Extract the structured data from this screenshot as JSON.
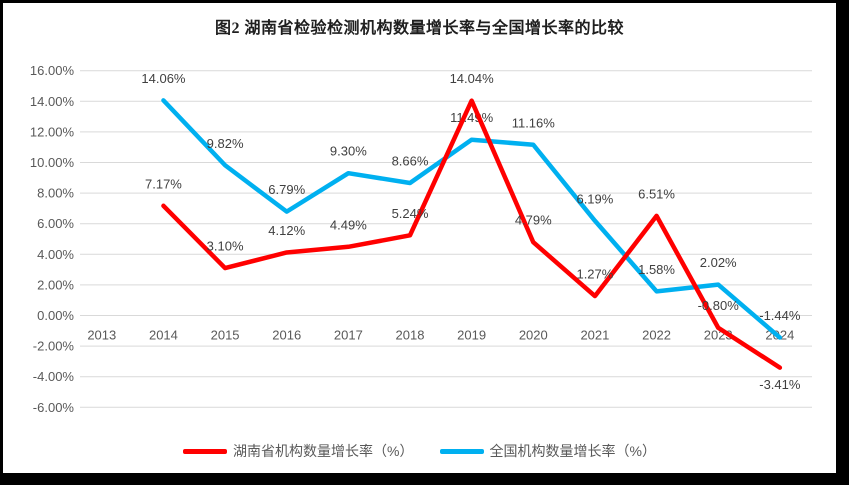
{
  "title": "图2 湖南省检验检测机构数量增长率与全国增长率的比较",
  "colors": {
    "frame": "#000000",
    "background": "#FFFFFF",
    "gridline": "#D9D9D9",
    "axis_text": "#595959",
    "data_label_text": "#404040",
    "title_text": "#1F1F1F",
    "hunan_series": "#FF0000",
    "national_series": "#00B0F0"
  },
  "chart_data": {
    "type": "line",
    "title": "图2 湖南省检验检测机构数量增长率与全国增长率的比较",
    "categories": [
      "2013",
      "2014",
      "2015",
      "2016",
      "2017",
      "2018",
      "2019",
      "2020",
      "2021",
      "2022",
      "2023",
      "2024"
    ],
    "series": [
      {
        "key": "hunan",
        "name": "湖南省机构数量增长率（%）",
        "color": "#FF0000",
        "values": [
          null,
          7.17,
          3.1,
          4.12,
          4.49,
          5.24,
          14.04,
          4.79,
          1.27,
          6.51,
          -0.8,
          -3.41
        ],
        "labels": [
          null,
          "7.17%",
          "3.10%",
          "4.12%",
          "4.49%",
          "5.24%",
          "14.04%",
          "4.79%",
          "1.27%",
          "6.51%",
          "-0.80%",
          "-3.41%"
        ],
        "label_positions": [
          null,
          "above",
          "above",
          "above",
          "above",
          "above",
          "above",
          "above",
          "above",
          "above",
          "above",
          "below"
        ]
      },
      {
        "key": "national",
        "name": "全国机构数量增长率（%）",
        "color": "#00B0F0",
        "values": [
          null,
          14.06,
          9.82,
          6.79,
          9.3,
          8.66,
          11.49,
          11.16,
          6.19,
          1.58,
          2.02,
          -1.44
        ],
        "labels": [
          null,
          "14.06%",
          "9.82%",
          "6.79%",
          "9.30%",
          "8.66%",
          "11.49%",
          "11.16%",
          "6.19%",
          "1.58%",
          "2.02%",
          "-1.44%"
        ],
        "label_positions": [
          null,
          "above",
          "above",
          "above",
          "above",
          "above",
          "above",
          "above",
          "above",
          "above",
          "above",
          "above"
        ]
      }
    ],
    "ylim": [
      -6,
      16
    ],
    "ytick_step": 2,
    "yticks": [
      "16.00%",
      "14.00%",
      "12.00%",
      "10.00%",
      "8.00%",
      "6.00%",
      "4.00%",
      "2.00%",
      "0.00%",
      "-2.00%",
      "-4.00%",
      "-6.00%"
    ],
    "grid": true,
    "legend_position": "bottom",
    "xlabel": "",
    "ylabel": ""
  }
}
